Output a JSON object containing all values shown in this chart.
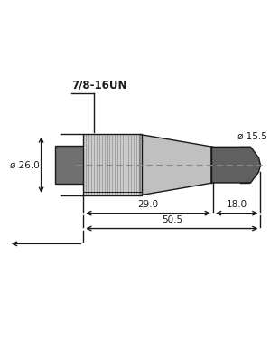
{
  "bg_color": "#ffffff",
  "line_color": "#1a1a1a",
  "connector_color": "#c0c0c0",
  "knurled_color": "#cccccc",
  "knurled_line_color": "#999999",
  "dark_color": "#606060",
  "plug_color": "#707070",
  "dim_color": "#1a1a1a",
  "centerline_color": "#888888",
  "label_7816un": "7/8-16UN",
  "label_d26": "ø 26.0",
  "label_d15": "ø 15.5",
  "label_29": "29.0",
  "label_18": "18.0",
  "label_50": "50.5",
  "figsize": [
    2.99,
    4.0
  ],
  "dpi": 100
}
